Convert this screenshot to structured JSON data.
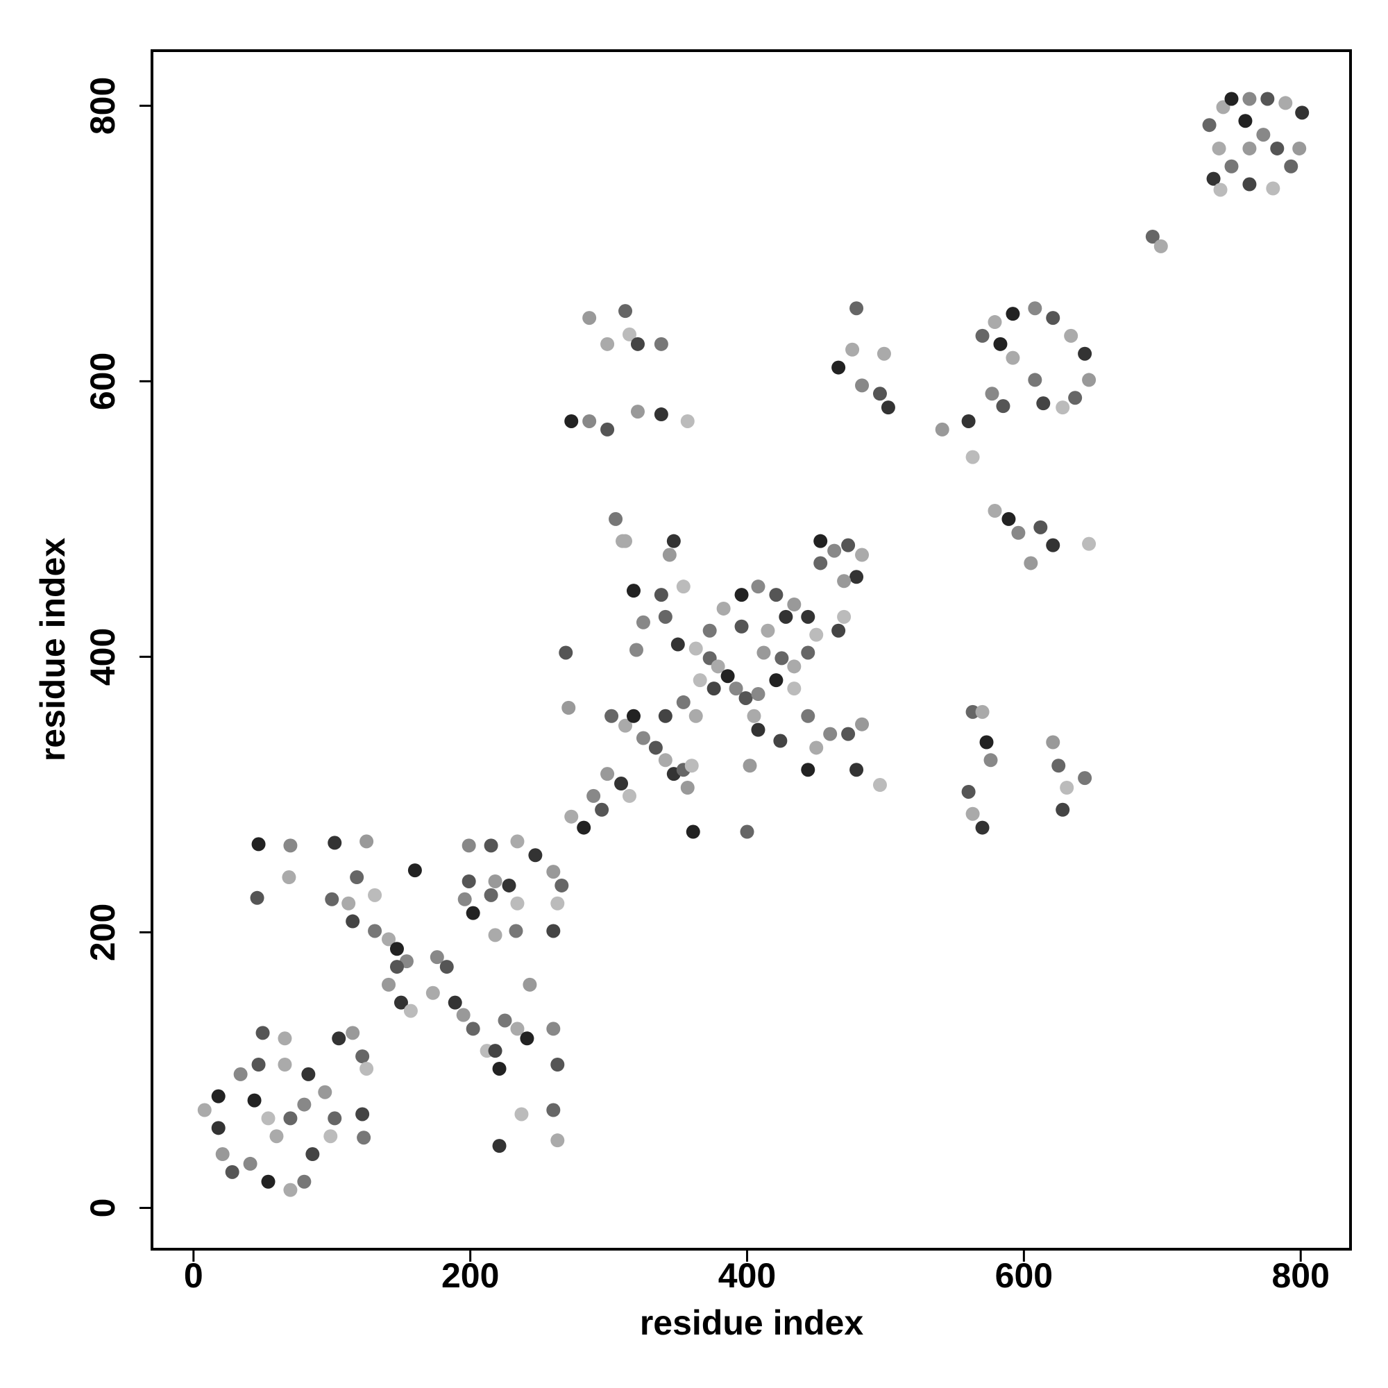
{
  "chart_data": {
    "type": "scatter",
    "xlabel": "residue index",
    "ylabel": "residue index",
    "xlim": [
      -30,
      836
    ],
    "ylim": [
      -30,
      840
    ],
    "xticks": [
      0,
      200,
      400,
      600,
      800
    ],
    "yticks": [
      0,
      200,
      400,
      600,
      800
    ],
    "grid": false,
    "x": [
      47,
      70,
      46,
      69,
      102,
      125,
      118,
      131,
      115,
      131,
      141,
      147,
      154,
      147,
      141,
      150,
      157,
      100,
      112,
      160,
      176,
      183,
      173,
      189,
      195,
      202,
      212,
      218,
      225,
      234,
      241,
      260,
      263,
      243,
      221,
      237,
      260,
      263,
      221,
      199,
      215,
      234,
      247,
      260,
      266,
      263,
      260,
      233,
      218,
      202,
      196,
      199,
      218,
      228,
      234,
      215,
      8,
      18,
      34,
      47,
      66,
      83,
      95,
      102,
      99,
      86,
      80,
      70,
      54,
      41,
      28,
      21,
      18,
      54,
      70,
      60,
      44,
      80,
      50,
      66,
      105,
      115,
      122,
      125,
      122,
      123,
      273,
      282,
      289,
      295,
      299,
      309,
      315,
      302,
      312,
      318,
      325,
      334,
      341,
      347,
      357,
      354,
      360,
      341,
      354,
      363,
      361,
      320,
      269,
      271,
      350,
      363,
      373,
      379,
      386,
      392,
      399,
      405,
      408,
      402,
      400,
      366,
      376,
      373,
      383,
      396,
      408,
      421,
      434,
      444,
      450,
      444,
      434,
      421,
      408,
      396,
      415,
      428,
      412,
      425,
      434,
      424,
      305,
      312,
      318,
      325,
      338,
      344,
      347,
      354,
      341,
      310,
      453,
      463,
      473,
      483,
      479,
      470,
      453,
      470,
      466,
      444,
      450,
      444,
      460,
      473,
      483,
      479,
      496,
      563,
      570,
      573,
      576,
      560,
      563,
      570,
      621,
      625,
      631,
      628,
      644,
      579,
      589,
      596,
      612,
      605,
      621,
      647,
      570,
      579,
      592,
      608,
      621,
      634,
      644,
      647,
      637,
      628,
      614,
      608,
      592,
      583,
      577,
      585,
      541,
      560,
      563,
      479,
      476,
      466,
      483,
      496,
      499,
      502,
      286,
      312,
      315,
      321,
      338,
      299,
      273,
      286,
      299,
      321,
      338,
      357,
      734,
      744,
      750,
      763,
      776,
      789,
      801,
      799,
      793,
      780,
      763,
      750,
      741,
      760,
      773,
      783,
      763,
      737,
      742,
      693,
      699
    ],
    "values": [
      264,
      263,
      225,
      240,
      265,
      266,
      240,
      227,
      208,
      201,
      195,
      188,
      179,
      175,
      162,
      149,
      143,
      224,
      221,
      245,
      182,
      175,
      156,
      149,
      140,
      130,
      114,
      114,
      136,
      130,
      123,
      130,
      104,
      162,
      45,
      68,
      71,
      49,
      101,
      263,
      263,
      266,
      256,
      244,
      234,
      221,
      201,
      201,
      198,
      214,
      224,
      237,
      237,
      234,
      221,
      227,
      71,
      81,
      97,
      104,
      104,
      97,
      84,
      65,
      52,
      39,
      19,
      13,
      19,
      32,
      26,
      39,
      58,
      65,
      65,
      52,
      78,
      75,
      127,
      123,
      123,
      127,
      110,
      101,
      68,
      51,
      284,
      276,
      299,
      289,
      315,
      308,
      299,
      357,
      350,
      357,
      341,
      334,
      325,
      315,
      305,
      318,
      321,
      357,
      367,
      357,
      273,
      405,
      403,
      363,
      409,
      406,
      399,
      393,
      386,
      377,
      370,
      357,
      347,
      321,
      273,
      383,
      377,
      419,
      435,
      445,
      451,
      445,
      438,
      429,
      416,
      403,
      393,
      383,
      373,
      422,
      419,
      429,
      403,
      399,
      377,
      339,
      500,
      484,
      448,
      425,
      445,
      474,
      484,
      451,
      429,
      484,
      484,
      477,
      481,
      474,
      458,
      455,
      468,
      429,
      419,
      357,
      334,
      318,
      344,
      344,
      351,
      318,
      307,
      360,
      360,
      338,
      325,
      302,
      286,
      276,
      338,
      321,
      305,
      289,
      312,
      506,
      500,
      490,
      494,
      468,
      481,
      482,
      633,
      643,
      649,
      653,
      646,
      633,
      620,
      601,
      588,
      581,
      584,
      601,
      617,
      627,
      591,
      582,
      565,
      571,
      545,
      653,
      623,
      610,
      597,
      591,
      620,
      581,
      646,
      651,
      634,
      627,
      627,
      627,
      571,
      571,
      565,
      578,
      576,
      571,
      786,
      799,
      805,
      805,
      805,
      802,
      795,
      769,
      756,
      740,
      743,
      756,
      769,
      789,
      779,
      769,
      769,
      747,
      739,
      705,
      698
    ],
    "colors": [
      "#222",
      "#888",
      "#555",
      "#aaa",
      "#333",
      "#999",
      "#666",
      "#bbb",
      "#444",
      "#777",
      "#aaa",
      "#222",
      "#888",
      "#555",
      "#999",
      "#333",
      "#bbb",
      "#666",
      "#aaa",
      "#222",
      "#888",
      "#555",
      "#aaa",
      "#333",
      "#999",
      "#666",
      "#bbb",
      "#444",
      "#777",
      "#aaa",
      "#222",
      "#888",
      "#555",
      "#999",
      "#333",
      "#bbb",
      "#666",
      "#aaa",
      "#222",
      "#888",
      "#555",
      "#aaa",
      "#333",
      "#999",
      "#666",
      "#bbb",
      "#444",
      "#777",
      "#aaa",
      "#222",
      "#888",
      "#555",
      "#999",
      "#333",
      "#bbb",
      "#666",
      "#aaa",
      "#222",
      "#888",
      "#555",
      "#aaa",
      "#333",
      "#999",
      "#666",
      "#bbb",
      "#444",
      "#777",
      "#aaa",
      "#222",
      "#888",
      "#555",
      "#999",
      "#333",
      "#bbb",
      "#666",
      "#aaa",
      "#222",
      "#888",
      "#555",
      "#aaa",
      "#333",
      "#999",
      "#666",
      "#bbb",
      "#444",
      "#777",
      "#aaa",
      "#222",
      "#888",
      "#555",
      "#999",
      "#333",
      "#bbb",
      "#666",
      "#aaa",
      "#222",
      "#888",
      "#555",
      "#aaa",
      "#333",
      "#999",
      "#666",
      "#bbb",
      "#444",
      "#777",
      "#aaa",
      "#222",
      "#888",
      "#555",
      "#999",
      "#333",
      "#bbb",
      "#666",
      "#aaa",
      "#222",
      "#888",
      "#555",
      "#aaa",
      "#333",
      "#999",
      "#666",
      "#bbb",
      "#444",
      "#777",
      "#aaa",
      "#222",
      "#888",
      "#555",
      "#999",
      "#333",
      "#bbb",
      "#666",
      "#aaa",
      "#222",
      "#888",
      "#555",
      "#aaa",
      "#333",
      "#999",
      "#666",
      "#bbb",
      "#444",
      "#777",
      "#aaa",
      "#222",
      "#888",
      "#555",
      "#999",
      "#333",
      "#bbb",
      "#666",
      "#aaa",
      "#222",
      "#888",
      "#555",
      "#aaa",
      "#333",
      "#999",
      "#666",
      "#bbb",
      "#444",
      "#777",
      "#aaa",
      "#222",
      "#888",
      "#555",
      "#999",
      "#333",
      "#bbb",
      "#666",
      "#aaa",
      "#222",
      "#888",
      "#555",
      "#aaa",
      "#333",
      "#999",
      "#666",
      "#bbb",
      "#444",
      "#777",
      "#aaa",
      "#222",
      "#888",
      "#555",
      "#999",
      "#333",
      "#bbb",
      "#666",
      "#aaa",
      "#222",
      "#888",
      "#555",
      "#aaa",
      "#333",
      "#999",
      "#666",
      "#bbb",
      "#444",
      "#777",
      "#aaa",
      "#222",
      "#888",
      "#555",
      "#999",
      "#333",
      "#bbb",
      "#666",
      "#aaa",
      "#222",
      "#888",
      "#555",
      "#aaa",
      "#333",
      "#999",
      "#666",
      "#bbb",
      "#444",
      "#777",
      "#aaa",
      "#222",
      "#888",
      "#555",
      "#999",
      "#333",
      "#bbb",
      "#666",
      "#aaa",
      "#222",
      "#888",
      "#555",
      "#aaa",
      "#333",
      "#999",
      "#666",
      "#bbb",
      "#444",
      "#777",
      "#aaa",
      "#222",
      "#888",
      "#555",
      "#999",
      "#333",
      "#bbb",
      "#666",
      "#aaa"
    ]
  }
}
